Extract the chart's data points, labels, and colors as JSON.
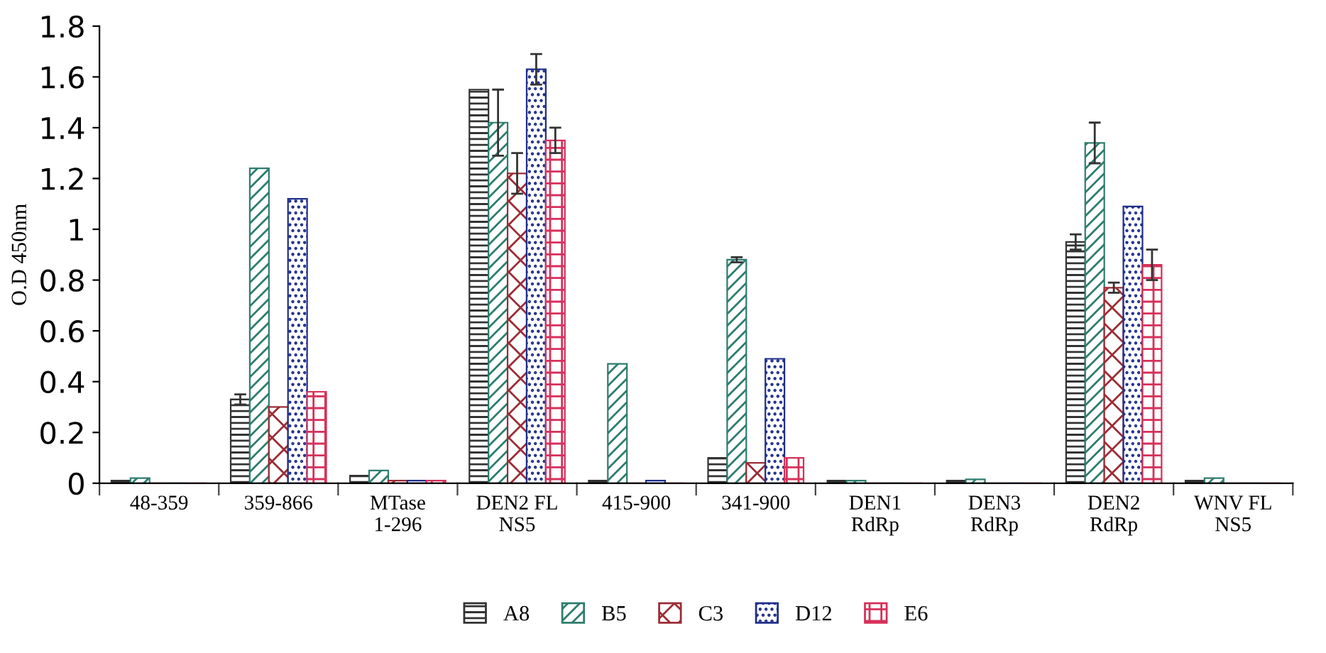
{
  "chart_data": {
    "type": "bar",
    "ylabel": "O.D 450nm",
    "categories": [
      "48-359",
      "359-866",
      "MTase\n1-296",
      "DEN2 FL\nNS5",
      "415-900",
      "341-900",
      "DEN1\nRdRp",
      "DEN3\nRdRp",
      "DEN2\nRdRp",
      "WNV FL\nNS5"
    ],
    "series": [
      {
        "name": "A8",
        "color": "#333333",
        "values": [
          0.01,
          0.33,
          0.03,
          1.55,
          0.01,
          0.1,
          0.01,
          0.01,
          0.95,
          0.01
        ],
        "errors": [
          null,
          0.02,
          null,
          null,
          null,
          null,
          null,
          null,
          0.03,
          null
        ]
      },
      {
        "name": "B5",
        "color": "#2e7d6e",
        "values": [
          0.02,
          1.24,
          0.05,
          1.42,
          0.47,
          0.88,
          0.01,
          0.015,
          1.34,
          0.02
        ],
        "errors": [
          null,
          null,
          null,
          0.13,
          null,
          0.01,
          null,
          null,
          0.08,
          null
        ]
      },
      {
        "name": "C3",
        "color": "#9b2d35",
        "values": [
          0,
          0.3,
          0.01,
          1.22,
          0,
          0.08,
          0,
          0,
          0.77,
          0
        ],
        "errors": [
          null,
          null,
          null,
          0.08,
          null,
          null,
          null,
          null,
          0.02,
          null
        ]
      },
      {
        "name": "D12",
        "color": "#1f2f8a",
        "values": [
          0,
          1.12,
          0.01,
          1.63,
          0.01,
          0.49,
          0,
          0,
          1.09,
          0
        ],
        "errors": [
          null,
          null,
          null,
          0.06,
          null,
          null,
          null,
          null,
          null,
          null
        ]
      },
      {
        "name": "E6",
        "color": "#d6305a",
        "values": [
          0,
          0.36,
          0.01,
          1.35,
          0,
          0.1,
          0,
          0,
          0.86,
          0
        ],
        "errors": [
          null,
          null,
          null,
          0.05,
          null,
          null,
          null,
          null,
          0.06,
          null
        ]
      }
    ],
    "ylim": [
      0,
      1.8
    ],
    "yticks": [
      0,
      0.2,
      0.4,
      0.6,
      0.8,
      1,
      1.2,
      1.4,
      1.6,
      1.8
    ],
    "grid": false,
    "legend": "bottom"
  }
}
